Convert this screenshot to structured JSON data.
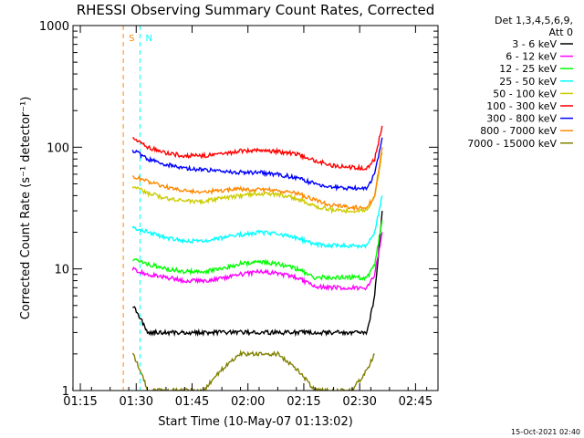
{
  "chart_data": {
    "type": "line",
    "title": "RHESSI Observing Summary Count Rates, Corrected",
    "xlabel": "Start Time (10-May-07 01:13:02)",
    "ylabel": "Corrected Count Rate (s⁻¹ detector⁻¹)",
    "x_unit": "minutes since 01:13:02",
    "xlim": [
      0,
      98
    ],
    "ylim": [
      1,
      1000
    ],
    "yscale": "log",
    "x_ticks": [
      {
        "label": "01:15",
        "value": 1.97
      },
      {
        "label": "01:30",
        "value": 16.97
      },
      {
        "label": "01:45",
        "value": 31.97
      },
      {
        "label": "02:00",
        "value": 46.97
      },
      {
        "label": "02:15",
        "value": 61.97
      },
      {
        "label": "02:30",
        "value": 76.97
      },
      {
        "label": "02:45",
        "value": 91.97
      }
    ],
    "y_ticks": [
      {
        "label": "1",
        "value": 1
      },
      {
        "label": "10",
        "value": 10
      },
      {
        "label": "100",
        "value": 100
      },
      {
        "label": "1000",
        "value": 1000
      }
    ],
    "legend": {
      "header": [
        "Det 1,3,4,5,6,9,",
        "Att 0"
      ],
      "placement": "right"
    },
    "series": [
      {
        "name": "3 - 6 keV",
        "color": "#000000",
        "x": [
          16,
          18,
          20,
          25,
          30,
          40,
          50,
          60,
          70,
          76,
          79,
          81,
          83
        ],
        "y": [
          5,
          4,
          3,
          3,
          3,
          3,
          3,
          3,
          3,
          3,
          3,
          6,
          30
        ]
      },
      {
        "name": "6 - 12 keV",
        "color": "#ff00ff",
        "x": [
          16,
          20,
          25,
          30,
          35,
          40,
          45,
          50,
          55,
          60,
          65,
          70,
          75,
          79,
          81,
          83
        ],
        "y": [
          10,
          9,
          8.5,
          8,
          8,
          8.3,
          9,
          9.5,
          9.2,
          8.5,
          7.2,
          7,
          7,
          7,
          9,
          20
        ]
      },
      {
        "name": "12 - 25 keV",
        "color": "#00ff00",
        "x": [
          16,
          20,
          25,
          30,
          35,
          40,
          45,
          50,
          55,
          60,
          65,
          70,
          75,
          79,
          81,
          83
        ],
        "y": [
          12,
          11,
          10,
          9.5,
          9.5,
          10,
          11,
          11.5,
          11,
          10,
          8.5,
          8.5,
          8.5,
          8.5,
          11,
          25
        ]
      },
      {
        "name": "25 - 50 keV",
        "color": "#00ffff",
        "x": [
          16,
          20,
          25,
          30,
          35,
          40,
          45,
          50,
          55,
          60,
          65,
          70,
          75,
          79,
          81,
          83
        ],
        "y": [
          22,
          20,
          18,
          17,
          17,
          18,
          19,
          20,
          19.5,
          18,
          16,
          15.5,
          15.5,
          15.5,
          20,
          40
        ]
      },
      {
        "name": "50 - 100 keV",
        "color": "#cccc00",
        "x": [
          16,
          20,
          25,
          30,
          35,
          40,
          45,
          50,
          55,
          60,
          65,
          70,
          75,
          79,
          81,
          83
        ],
        "y": [
          48,
          42,
          38,
          36,
          36,
          38,
          40,
          42,
          41,
          38,
          33,
          30,
          30,
          30,
          40,
          90
        ]
      },
      {
        "name": "100 - 300 keV",
        "color": "#ff0000",
        "x": [
          16,
          20,
          25,
          30,
          35,
          40,
          45,
          50,
          55,
          60,
          65,
          70,
          75,
          79,
          81,
          83
        ],
        "y": [
          120,
          100,
          90,
          85,
          85,
          88,
          93,
          95,
          92,
          88,
          78,
          70,
          68,
          68,
          80,
          150
        ]
      },
      {
        "name": "300 - 800 keV",
        "color": "#0000ff",
        "x": [
          16,
          20,
          25,
          30,
          35,
          40,
          45,
          50,
          55,
          60,
          65,
          70,
          75,
          79,
          81,
          83
        ],
        "y": [
          95,
          80,
          72,
          67,
          65,
          64,
          62,
          62,
          60,
          56,
          50,
          47,
          46,
          46,
          60,
          120
        ]
      },
      {
        "name": "800 - 7000 keV",
        "color": "#ff8800",
        "x": [
          16,
          20,
          25,
          30,
          35,
          40,
          45,
          50,
          55,
          60,
          65,
          70,
          75,
          79,
          81,
          83
        ],
        "y": [
          58,
          52,
          47,
          44,
          43,
          44,
          45,
          45,
          44,
          42,
          37,
          33,
          32,
          32,
          40,
          100
        ]
      },
      {
        "name": "7000 - 15000 keV",
        "color": "#808000",
        "x": [
          16,
          18,
          20,
          25,
          30,
          35,
          40,
          45,
          50,
          55,
          60,
          65,
          70,
          75,
          79,
          81
        ],
        "y": [
          2,
          1.5,
          1,
          1,
          1,
          1,
          1.5,
          2,
          2,
          2,
          1.5,
          1,
          1,
          1,
          1.5,
          2
        ]
      }
    ],
    "flag_markers": [
      {
        "label": "S",
        "color": "#ff8800",
        "x": 13.5
      },
      {
        "label": "N",
        "color": "#00ffff",
        "x": 18
      }
    ],
    "footer_date": "15-Oct-2021 02:40"
  }
}
